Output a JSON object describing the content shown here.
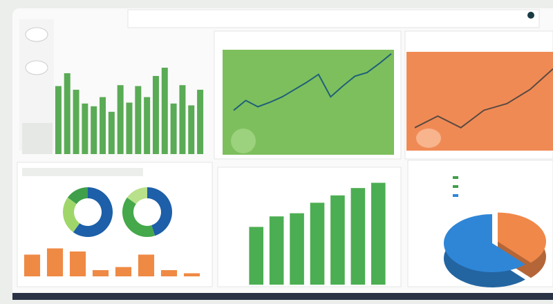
{
  "chart_data": [
    {
      "type": "bar",
      "values": [
        74,
        88,
        70,
        55,
        52,
        62,
        46,
        75,
        56,
        74,
        62,
        85,
        94,
        55,
        75,
        53,
        70
      ],
      "color": "#5aab55",
      "ylim": [
        0,
        100
      ]
    },
    {
      "type": "line",
      "values": [
        31,
        42,
        35,
        40,
        46,
        54,
        62,
        71,
        46,
        58,
        69,
        73,
        83,
        94
      ],
      "color": "#1f5f7a",
      "ylim": [
        0,
        100
      ]
    },
    {
      "type": "line",
      "values": [
        21,
        35,
        21,
        42,
        50,
        67,
        92
      ],
      "color": "#5a4a40",
      "ylim": [
        0,
        100
      ]
    },
    {
      "type": "donut",
      "values": [
        60,
        25,
        15
      ],
      "colors": [
        "#1d5fa8",
        "#9fd66a",
        "#3f9f4a"
      ]
    },
    {
      "type": "donut",
      "values": [
        45,
        40,
        15
      ],
      "colors": [
        "#1d5fa8",
        "#45a84a",
        "#b9e08a"
      ]
    },
    {
      "type": "bar",
      "values": [
        35,
        45,
        40,
        10,
        15,
        35,
        10,
        5
      ],
      "color": "#ef8a45",
      "ylim": [
        0,
        50
      ]
    },
    {
      "type": "bar",
      "values": [
        55,
        65,
        68,
        78,
        85,
        92,
        97
      ],
      "color": "#4cae52",
      "ylim": [
        0,
        100
      ]
    },
    {
      "type": "pie",
      "values": [
        62,
        38
      ],
      "colors": [
        "#2f86d6",
        "#f0884a"
      ]
    }
  ]
}
